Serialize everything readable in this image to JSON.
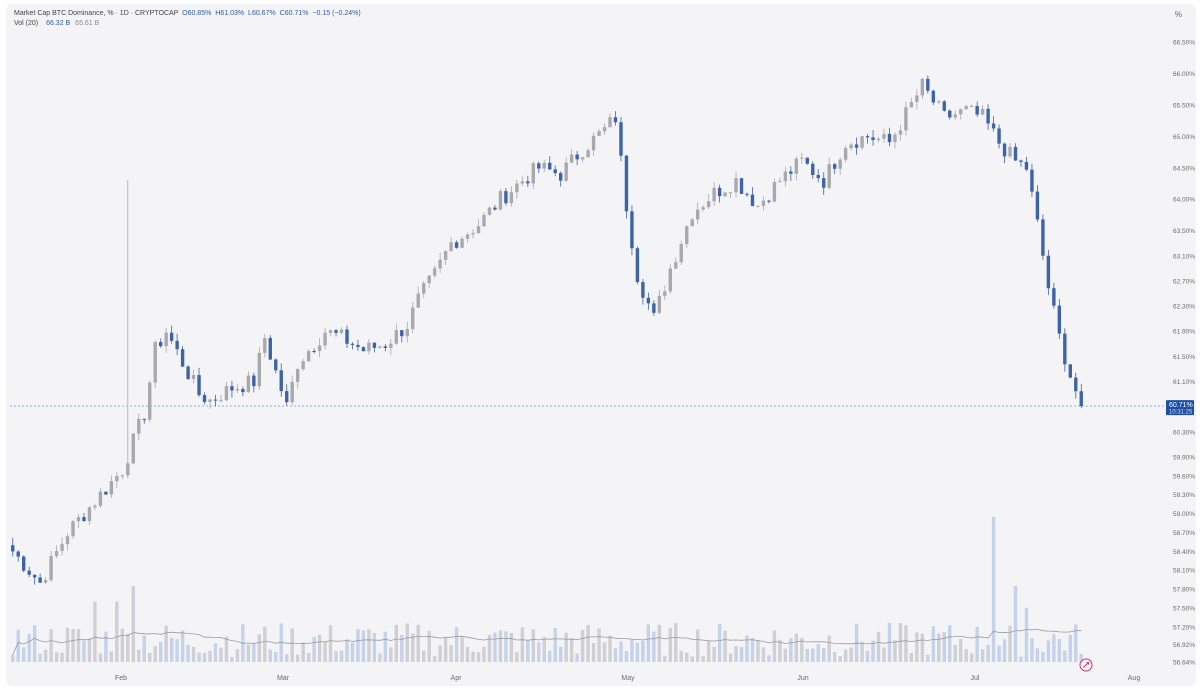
{
  "header": {
    "title": "Market Cap BTC Dominance, % · 1D · CRYPTOCAP",
    "ohlc": [
      {
        "k": "O",
        "v": "60.85%"
      },
      {
        "k": "H",
        "v": "61.03%"
      },
      {
        "k": "L",
        "v": "60.67%"
      },
      {
        "k": "C",
        "v": "60.71%"
      }
    ],
    "change": "−0.15 (−0.24%)",
    "vol_label": "Vol (20)",
    "vol_value": "66.32 B",
    "vol_ma": "65.61 B",
    "unit_icon": "%"
  },
  "chart_data": {
    "type": "candlestick",
    "title": "Market Cap BTC Dominance, % · 1D · CRYPTOCAP",
    "x_ticks": [
      "Feb",
      "Mar",
      "Apr",
      "May",
      "Jun",
      "Jul",
      "Aug"
    ],
    "y_ticks": [
      "66.50%",
      "66.00%",
      "65.50%",
      "65.00%",
      "64.50%",
      "64.00%",
      "63.50%",
      "63.10%",
      "62.70%",
      "62.30%",
      "61.90%",
      "61.50%",
      "61.10%",
      "60.30%",
      "59.90%",
      "59.60%",
      "59.30%",
      "59.00%",
      "58.70%",
      "58.40%",
      "58.10%",
      "57.80%",
      "57.50%",
      "57.20%",
      "56.92%",
      "56.64%"
    ],
    "price_label": {
      "value": "60.71%",
      "countdown": "10:31:25"
    },
    "close_path": [
      [
        0,
        58.4
      ],
      [
        5,
        57.9
      ],
      [
        10,
        58.7
      ],
      [
        15,
        59.2
      ],
      [
        20,
        59.7
      ],
      [
        24,
        60.6
      ],
      [
        26,
        61.6
      ],
      [
        28,
        61.9
      ],
      [
        31,
        61.4
      ],
      [
        34,
        60.9
      ],
      [
        36,
        60.8
      ],
      [
        40,
        61.0
      ],
      [
        44,
        61.1
      ],
      [
        46,
        61.8
      ],
      [
        50,
        60.7
      ],
      [
        52,
        61.4
      ],
      [
        57,
        61.9
      ],
      [
        60,
        61.8
      ],
      [
        64,
        61.6
      ],
      [
        68,
        61.7
      ],
      [
        72,
        62.0
      ],
      [
        74,
        62.4
      ],
      [
        77,
        62.8
      ],
      [
        80,
        63.3
      ],
      [
        85,
        63.6
      ],
      [
        89,
        64.0
      ],
      [
        93,
        64.3
      ],
      [
        96,
        64.5
      ],
      [
        100,
        64.4
      ],
      [
        104,
        64.8
      ],
      [
        108,
        65.1
      ],
      [
        110,
        65.3
      ],
      [
        112,
        63.9
      ],
      [
        114,
        62.8
      ],
      [
        117,
        62.1
      ],
      [
        120,
        62.9
      ],
      [
        124,
        63.8
      ],
      [
        128,
        64.1
      ],
      [
        132,
        64.3
      ],
      [
        136,
        63.9
      ],
      [
        140,
        64.3
      ],
      [
        144,
        64.6
      ],
      [
        148,
        64.3
      ],
      [
        152,
        64.9
      ],
      [
        156,
        65.0
      ],
      [
        160,
        64.9
      ],
      [
        164,
        65.5
      ],
      [
        166,
        65.8
      ],
      [
        170,
        65.3
      ],
      [
        174,
        65.4
      ],
      [
        177,
        65.3
      ],
      [
        180,
        64.9
      ],
      [
        183,
        64.6
      ],
      [
        185,
        64.5
      ],
      [
        187,
        63.6
      ],
      [
        189,
        62.6
      ],
      [
        191,
        61.8
      ],
      [
        193,
        61.2
      ],
      [
        195,
        60.71
      ]
    ],
    "candles": {
      "count": 196,
      "first_month_start_index": 20,
      "last_data_point": "60.71%"
    },
    "volume": {
      "label": "Vol (20)",
      "shape": "mostly between 56.64% and 57.5% on the price scale, with spikes near Feb and a large spike in mid-July"
    },
    "grid": "none",
    "legend_position": "top-left"
  },
  "colors": {
    "up": "#a9a9ad",
    "down": "#3c64a6",
    "vol_up": "#d0d0d4",
    "vol_down": "#c4d2ea",
    "ma": "#9a9aa0",
    "last_price_bg": "#1d4fa3",
    "dotted": "#8aa6d8",
    "background": "#f4f4f6"
  },
  "icons": [
    "percent-icon",
    "rocket-icon"
  ]
}
